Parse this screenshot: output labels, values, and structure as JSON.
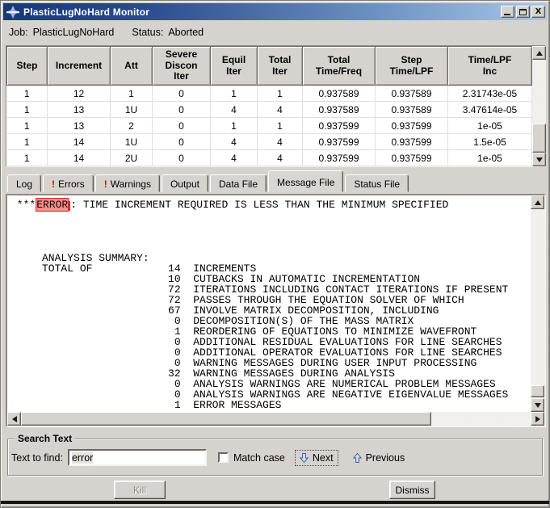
{
  "window": {
    "title": "PlasticLugNoHard Monitor",
    "icons": {
      "app": "abaqus-compass",
      "minimize": "minimize-bar",
      "maximize": "maximize-box",
      "close": "X"
    }
  },
  "jobline": {
    "job_label": "Job:",
    "job_value": "PlasticLugNoHard",
    "status_label": "Status:",
    "status_value": "Aborted"
  },
  "table": {
    "columns": [
      "Step",
      "Increment",
      "Att",
      "Severe\nDiscon\nIter",
      "Equil\nIter",
      "Total\nIter",
      "Total\nTime/Freq",
      "Step\nTime/LPF",
      "Time/LPF\nInc"
    ],
    "rows": [
      [
        "1",
        "12",
        "1",
        "0",
        "1",
        "1",
        "0.937589",
        "0.937589",
        "2.31743e-05"
      ],
      [
        "1",
        "13",
        "1U",
        "0",
        "4",
        "4",
        "0.937589",
        "0.937589",
        "3.47614e-05"
      ],
      [
        "1",
        "13",
        "2",
        "0",
        "1",
        "1",
        "0.937599",
        "0.937599",
        "1e-05"
      ],
      [
        "1",
        "14",
        "1U",
        "0",
        "4",
        "4",
        "0.937599",
        "0.937599",
        "1.5e-05"
      ],
      [
        "1",
        "14",
        "2U",
        "0",
        "4",
        "4",
        "0.937599",
        "0.937599",
        "1e-05"
      ]
    ]
  },
  "tabs": [
    {
      "label": "Log",
      "alert": false,
      "active": false
    },
    {
      "label": "Errors",
      "alert": true,
      "active": false
    },
    {
      "label": "Warnings",
      "alert": true,
      "active": false
    },
    {
      "label": "Output",
      "alert": false,
      "active": false
    },
    {
      "label": "Data File",
      "alert": false,
      "active": false
    },
    {
      "label": "Message File",
      "alert": false,
      "active": true
    },
    {
      "label": "Status File",
      "alert": false,
      "active": false
    }
  ],
  "message": {
    "error_prefix": " ***",
    "error_highlight": "ERROR",
    "error_suffix": ": TIME INCREMENT REQUIRED IS LESS THAN THE MINIMUM SPECIFIED",
    "summary_lines": [
      "",
      "",
      "",
      "",
      "     ANALYSIS SUMMARY:",
      "     TOTAL OF            14  INCREMENTS",
      "                         10  CUTBACKS IN AUTOMATIC INCREMENTATION",
      "                         72  ITERATIONS INCLUDING CONTACT ITERATIONS IF PRESENT",
      "                         72  PASSES THROUGH THE EQUATION SOLVER OF WHICH",
      "                         67  INVOLVE MATRIX DECOMPOSITION, INCLUDING",
      "                          0  DECOMPOSITION(S) OF THE MASS MATRIX",
      "                          1  REORDERING OF EQUATIONS TO MINIMIZE WAVEFRONT",
      "                          0  ADDITIONAL RESIDUAL EVALUATIONS FOR LINE SEARCHES",
      "                          0  ADDITIONAL OPERATOR EVALUATIONS FOR LINE SEARCHES",
      "                          0  WARNING MESSAGES DURING USER INPUT PROCESSING",
      "                         32  WARNING MESSAGES DURING ANALYSIS",
      "                          0  ANALYSIS WARNINGS ARE NUMERICAL PROBLEM MESSAGES",
      "                          0  ANALYSIS WARNINGS ARE NEGATIVE EIGENVALUE MESSAGES",
      "                          1  ERROR MESSAGES"
    ]
  },
  "search": {
    "group_label": "Search Text",
    "find_label": "Text to find:",
    "find_value": "error",
    "match_case_label": "Match case",
    "match_case_checked": false,
    "next_label": "Next",
    "previous_label": "Previous"
  },
  "actions": {
    "kill_label": "Kill",
    "kill_enabled": false,
    "dismiss_label": "Dismiss"
  },
  "colors": {
    "titlebar_left": "#16387c",
    "titlebar_right": "#a9c7e7",
    "window_bg": "#d6d3ce",
    "alert": "#cc1111",
    "highlight_bg": "#f5918c",
    "highlight_border": "#d92b2b"
  }
}
